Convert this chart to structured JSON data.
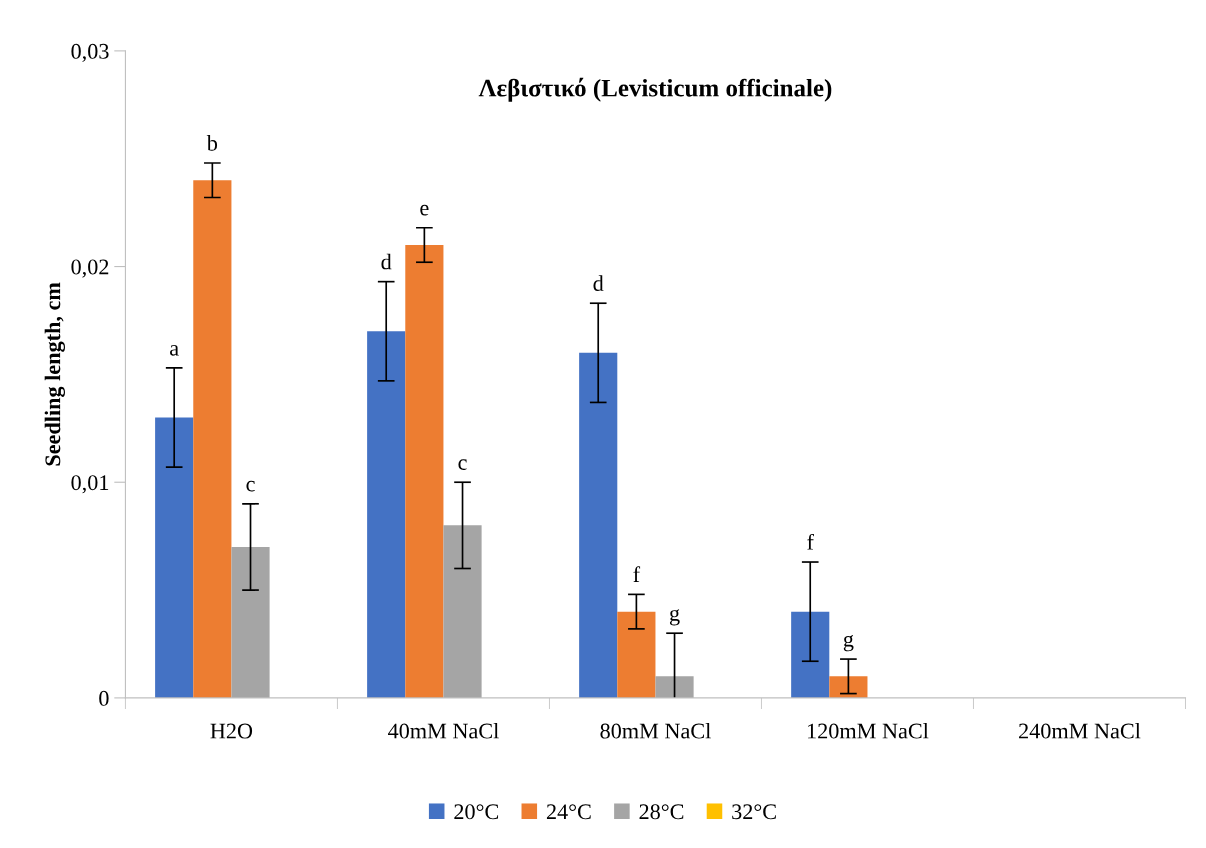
{
  "chart_data": {
    "type": "bar",
    "title": "Λεβιστικό (Levisticum officinale)",
    "ylabel": "Seedling length, cm",
    "categories": [
      "H2O",
      "40mM NaCl",
      "80mM NaCl",
      "120mM NaCl",
      "240mM NaCl"
    ],
    "series": [
      {
        "name": "20°C",
        "color": "#4472c4",
        "values": [
          0.013,
          0.017,
          0.016,
          0.004,
          0
        ],
        "errors": [
          0.0023,
          0.0023,
          0.0023,
          0.0023,
          null
        ],
        "value_labels": [
          "a",
          "d",
          "d",
          "f",
          null
        ]
      },
      {
        "name": "24°C",
        "color": "#ed7d31",
        "values": [
          0.024,
          0.021,
          0.004,
          0.001,
          0
        ],
        "errors": [
          0.0008,
          0.0008,
          0.0008,
          0.0008,
          null
        ],
        "value_labels": [
          "b",
          "e",
          "f",
          "g",
          null
        ]
      },
      {
        "name": "28°C",
        "color": "#a5a5a5",
        "values": [
          0.007,
          0.008,
          0.001,
          0,
          0
        ],
        "errors": [
          0.002,
          0.002,
          0.002,
          null,
          null
        ],
        "value_labels": [
          "c",
          "c",
          "g",
          null,
          null
        ]
      },
      {
        "name": "32°C",
        "color": "#ffc000",
        "values": [
          0,
          0,
          0,
          0,
          0
        ]
      }
    ],
    "ylim": [
      0,
      0.03
    ],
    "yticks": [
      {
        "value": 0,
        "label": "0"
      },
      {
        "value": 0.01,
        "label": "0,01"
      },
      {
        "value": 0.02,
        "label": "0,02"
      },
      {
        "value": 0.03,
        "label": "0,03"
      }
    ],
    "grid": false,
    "legend": "bottom"
  }
}
